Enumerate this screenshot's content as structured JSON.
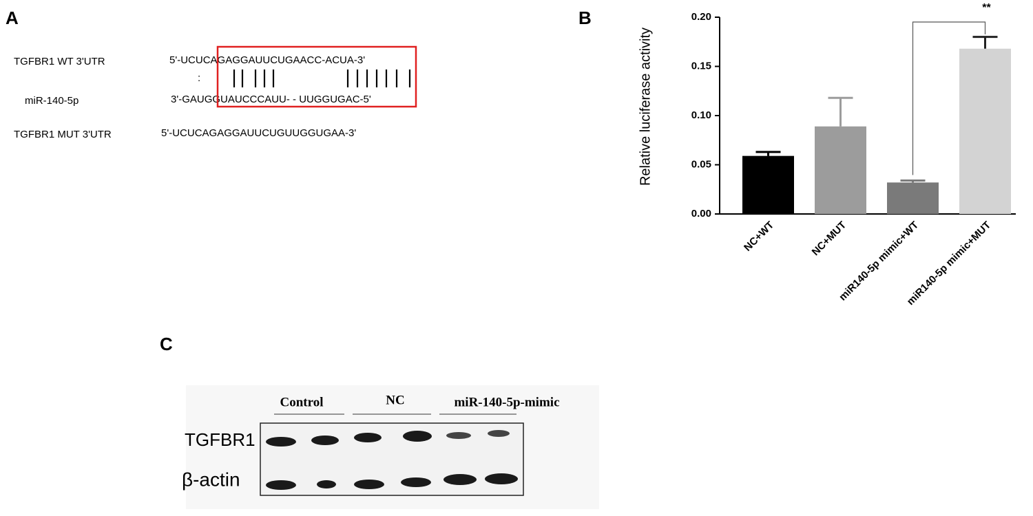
{
  "panel_a": {
    "label": "A",
    "rows": [
      {
        "name": "TGFBR1 WT 3'UTR",
        "sequence": "5'-UCUCAGAGGAUUCUGAACC-ACUA-3'"
      },
      {
        "name": "miR-140-5p",
        "sequence": "3'-GAUGGUAUCCCAUU- - UUGGUGAC-5'"
      },
      {
        "name": "TGFBR1 MUT 3'UTR",
        "sequence": "5'-UCUCAGAGGAUUCUGUUGGUGAA-3'"
      }
    ],
    "wobble": ":"
  },
  "chart_data": {
    "type": "bar",
    "panel_label": "B",
    "y_label": "Relative luciferase activity",
    "categories": [
      "NC+WT",
      "NC+MUT",
      "miR140-5p mimic+WT",
      "miR140-5p mimic+MUT"
    ],
    "values": [
      0.059,
      0.089,
      0.032,
      0.168
    ],
    "errors": [
      0.004,
      0.029,
      0.002,
      0.012
    ],
    "colors": [
      "#000000",
      "#9c9c9c",
      "#7a7a7a",
      "#d3d3d3"
    ],
    "ylim": [
      0,
      0.2
    ],
    "yticks": [
      {
        "value": 0,
        "label": "0.00"
      },
      {
        "value": 0.05,
        "label": "0.05"
      },
      {
        "value": 0.1,
        "label": "0.10"
      },
      {
        "value": 0.15,
        "label": "0.15"
      },
      {
        "value": 0.2,
        "label": "0.20"
      }
    ],
    "significance": {
      "label": "**",
      "between": [
        2,
        3
      ]
    }
  },
  "panel_c": {
    "label": "C",
    "groups": [
      "Control",
      "NC",
      "miR-140-5p-mimic"
    ],
    "rows": [
      "TGFBR1",
      "β-actin"
    ]
  }
}
